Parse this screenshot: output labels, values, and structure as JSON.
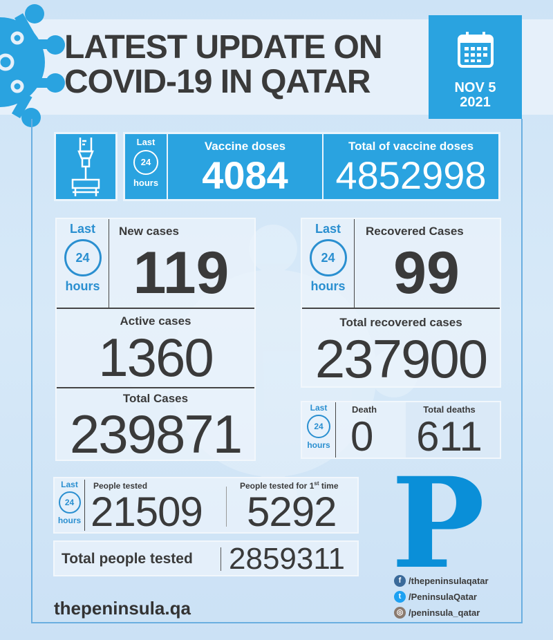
{
  "header": {
    "title_line1": "LATEST UPDATE ON",
    "title_line2": "COVID-19 IN QATAR",
    "date_line1": "NOV 5",
    "date_line2": "2021"
  },
  "period": {
    "last": "Last",
    "num": "24",
    "hours": "hours"
  },
  "vaccine": {
    "doses_label": "Vaccine doses",
    "doses": "4084",
    "total_label": "Total of vaccine doses",
    "total": "4852998"
  },
  "cases": {
    "new_label": "New cases",
    "new": "119",
    "active_label": "Active cases",
    "active": "1360",
    "total_label": "Total Cases",
    "total": "239871"
  },
  "recovered": {
    "new_label": "Recovered Cases",
    "new": "99",
    "total_label": "Total recovered cases",
    "total": "237900"
  },
  "deaths": {
    "death_label": "Death",
    "death": "0",
    "total_label": "Total deaths",
    "total": "611"
  },
  "tests": {
    "tested_label": "People tested",
    "tested": "21509",
    "first_label": "People tested for 1",
    "first_sup": "st",
    "first_suffix": " time",
    "first": "5292",
    "total_label": "Total people tested",
    "total": "2859311"
  },
  "footer": {
    "website": "thepeninsula.qa",
    "logo_letter": "P",
    "facebook": "/thepeninsulaqatar",
    "twitter": "/PeninsulaQatar",
    "instagram": "/peninsula_qatar"
  },
  "colors": {
    "accent": "#2aa3e0",
    "logo": "#0a8fd8",
    "text": "#3a3a3a"
  }
}
